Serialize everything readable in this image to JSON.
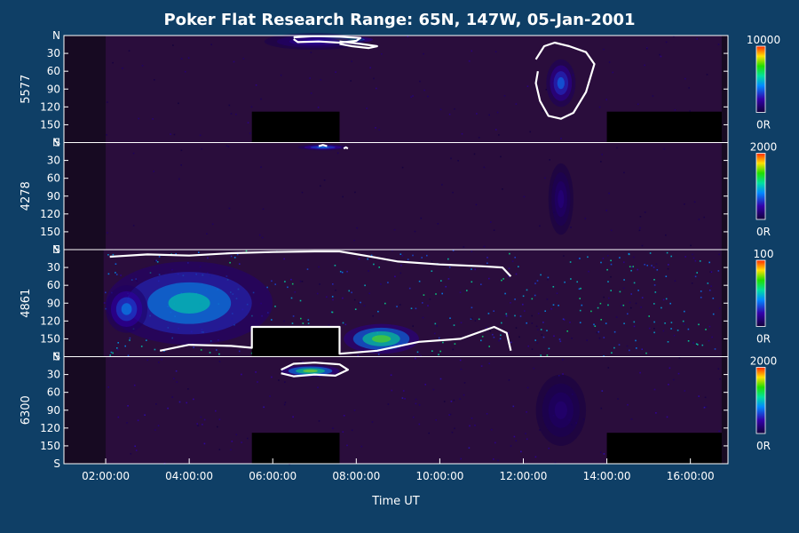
{
  "colors": {
    "background": "#0f3f66",
    "panel_bg": "#170a22",
    "axis": "#ffffff",
    "text": "#ffffff",
    "contour": "#ffffff",
    "colorbar_top": "#ff2a00",
    "colorbar_bottom": "#12003a"
  },
  "chart_data": {
    "type": "heatmap",
    "title": "Poker Flat Research Range: 65N, 147W, 05-Jan-2001",
    "xlabel": "Time UT",
    "x_ticks": [
      "02:00:00",
      "04:00:00",
      "06:00:00",
      "08:00:00",
      "10:00:00",
      "12:00:00",
      "14:00:00",
      "16:00:00"
    ],
    "x_tick_hours": [
      2,
      4,
      6,
      8,
      10,
      12,
      14,
      16
    ],
    "xlim_hours": [
      1.0,
      16.9
    ],
    "y_tick_labels": [
      "N",
      "30",
      "60",
      "90",
      "120",
      "150",
      "S"
    ],
    "y_tick_values": [
      0,
      30,
      60,
      90,
      120,
      150,
      180
    ],
    "ylim": [
      0,
      180
    ],
    "series": [
      {
        "name": "5577",
        "colorbar_max": "10000",
        "colorbar_min": "0R",
        "data_start_hour": 2.0,
        "data_end_hour": 16.75,
        "noise_level": 0.08,
        "blobs": [
          {
            "t": 7.6,
            "y": 7,
            "dt": 0.8,
            "dy": 6,
            "intensity": 0.9
          },
          {
            "t": 12.9,
            "y": 80,
            "dt": 0.35,
            "dy": 40,
            "intensity": 0.35
          },
          {
            "t": 7.0,
            "y": 10,
            "dt": 1.2,
            "dy": 14,
            "intensity": 0.2
          }
        ],
        "gaps": [
          {
            "t0": 5.5,
            "t1": 7.6,
            "y0": 128,
            "y1": 180
          },
          {
            "t0": 14.0,
            "t1": 16.75,
            "y0": 128,
            "y1": 180
          }
        ],
        "contours": [
          [
            [
              6.5,
              3
            ],
            [
              7.0,
              1
            ],
            [
              7.6,
              2
            ],
            [
              8.1,
              4
            ],
            [
              8.0,
              9
            ],
            [
              7.6,
              12
            ],
            [
              7.1,
              10
            ],
            [
              6.6,
              11
            ],
            [
              6.5,
              6
            ]
          ],
          [
            [
              7.6,
              10
            ],
            [
              8.1,
              14
            ],
            [
              8.5,
              18
            ],
            [
              8.3,
              21
            ],
            [
              7.9,
              18
            ],
            [
              7.6,
              14
            ]
          ],
          [
            [
              12.3,
              40
            ],
            [
              12.5,
              18
            ],
            [
              12.75,
              12
            ],
            [
              13.1,
              18
            ],
            [
              13.5,
              28
            ],
            [
              13.7,
              48
            ],
            [
              13.5,
              95
            ],
            [
              13.2,
              130
            ],
            [
              12.9,
              140
            ],
            [
              12.6,
              135
            ],
            [
              12.4,
              110
            ],
            [
              12.3,
              80
            ],
            [
              12.35,
              60
            ]
          ]
        ]
      },
      {
        "name": "4278",
        "colorbar_max": "2000",
        "colorbar_min": "0R",
        "data_start_hour": 2.0,
        "data_end_hour": 16.75,
        "noise_level": 0.05,
        "blobs": [
          {
            "t": 7.2,
            "y": 8,
            "dt": 0.6,
            "dy": 5,
            "intensity": 0.4
          },
          {
            "t": 12.9,
            "y": 95,
            "dt": 0.3,
            "dy": 60,
            "intensity": 0.12
          }
        ],
        "gaps": [],
        "contours": [
          [
            [
              7.1,
              6
            ],
            [
              7.2,
              4
            ],
            [
              7.3,
              6
            ]
          ],
          [
            [
              7.7,
              10
            ],
            [
              7.75,
              8
            ],
            [
              7.8,
              10
            ]
          ]
        ]
      },
      {
        "name": "4861",
        "colorbar_max": "100",
        "colorbar_min": "0R",
        "data_start_hour": 1.95,
        "data_end_hour": 16.75,
        "noise_level": 0.35,
        "blobs": [
          {
            "t": 4.0,
            "y": 90,
            "dt": 2.0,
            "dy": 70,
            "intensity": 0.55
          },
          {
            "t": 8.6,
            "y": 150,
            "dt": 0.9,
            "dy": 25,
            "intensity": 0.8
          },
          {
            "t": 2.5,
            "y": 100,
            "dt": 0.5,
            "dy": 40,
            "intensity": 0.4
          }
        ],
        "gaps": [
          {
            "t0": 5.5,
            "t1": 7.6,
            "y0": 130,
            "y1": 180
          }
        ],
        "contours": [
          [
            [
              2.1,
              12
            ],
            [
              3.0,
              8
            ],
            [
              4.0,
              10
            ],
            [
              5.0,
              6
            ],
            [
              6.0,
              4
            ],
            [
              7.0,
              3
            ],
            [
              7.6,
              3
            ],
            [
              8.2,
              10
            ],
            [
              9.0,
              20
            ],
            [
              10.0,
              25
            ],
            [
              11.0,
              28
            ],
            [
              11.5,
              30
            ],
            [
              11.7,
              45
            ]
          ],
          [
            [
              3.3,
              170
            ],
            [
              4.0,
              160
            ],
            [
              5.0,
              162
            ],
            [
              5.5,
              165
            ],
            [
              5.5,
              130
            ],
            [
              7.6,
              130
            ],
            [
              7.6,
              175
            ],
            [
              8.5,
              170
            ],
            [
              9.5,
              155
            ],
            [
              10.5,
              150
            ],
            [
              11.3,
              130
            ],
            [
              11.6,
              140
            ],
            [
              11.7,
              170
            ]
          ]
        ]
      },
      {
        "name": "6300",
        "colorbar_max": "2000",
        "colorbar_min": "0R",
        "data_start_hour": 2.0,
        "data_end_hour": 16.75,
        "noise_level": 0.12,
        "blobs": [
          {
            "t": 6.9,
            "y": 24,
            "dt": 0.7,
            "dy": 10,
            "intensity": 0.85
          },
          {
            "t": 12.9,
            "y": 90,
            "dt": 0.6,
            "dy": 60,
            "intensity": 0.1
          }
        ],
        "gaps": [
          {
            "t0": 5.5,
            "t1": 7.6,
            "y0": 128,
            "y1": 180
          },
          {
            "t0": 14.0,
            "t1": 16.75,
            "y0": 128,
            "y1": 180
          }
        ],
        "contours": [
          [
            [
              6.2,
              22
            ],
            [
              6.5,
              12
            ],
            [
              7.0,
              10
            ],
            [
              7.6,
              13
            ],
            [
              7.8,
              22
            ],
            [
              7.5,
              32
            ],
            [
              7.0,
              30
            ],
            [
              6.5,
              33
            ],
            [
              6.2,
              28
            ]
          ]
        ]
      }
    ]
  }
}
